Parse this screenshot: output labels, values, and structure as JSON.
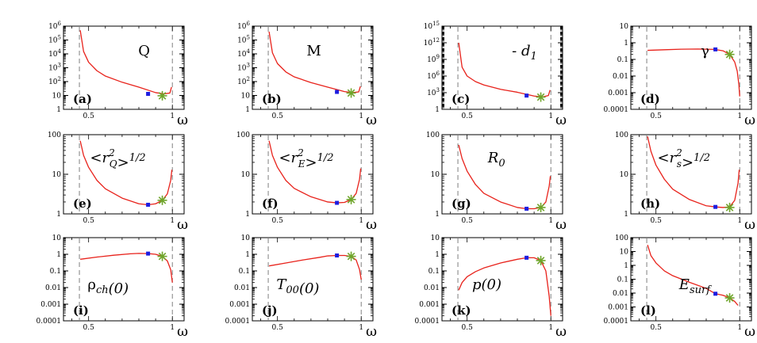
{
  "chart_data": [
    {
      "type": "line",
      "panel": "(a)",
      "quantity": "Q",
      "title_parts": [
        {
          "t": "Q"
        }
      ],
      "xlabel": "ω",
      "xlim": [
        0.35,
        1.07
      ],
      "ylog": true,
      "ylim": [
        1,
        1000000
      ],
      "yticks": [
        {
          "v": 1,
          "b": "1",
          "e": ""
        },
        {
          "v": 10,
          "b": "10",
          "e": ""
        },
        {
          "v": 100,
          "b": "10",
          "e": "2"
        },
        {
          "v": 1000,
          "b": "10",
          "e": "3"
        },
        {
          "v": 10000,
          "b": "10",
          "e": "4"
        },
        {
          "v": 100000,
          "b": "10",
          "e": "5"
        },
        {
          "v": 1000000,
          "b": "10",
          "e": "6"
        }
      ],
      "xticks": [
        {
          "v": 0.5,
          "l": "0.5"
        },
        {
          "v": 1,
          "l": "1"
        }
      ],
      "omega_min": 0.445,
      "omega_max": 1.0,
      "curve_x": [
        0.45,
        0.47,
        0.5,
        0.55,
        0.6,
        0.7,
        0.8,
        0.9,
        0.95,
        0.985,
        0.995
      ],
      "curve_y": [
        500000,
        15000,
        2500,
        600,
        250,
        90,
        40,
        16,
        13,
        15,
        40
      ],
      "blue_marker": [
        0.855,
        13
      ],
      "green_star": [
        0.94,
        9.5
      ]
    },
    {
      "type": "line",
      "panel": "(b)",
      "quantity": "M",
      "title_parts": [
        {
          "t": "M"
        }
      ],
      "xlabel": "ω",
      "xlim": [
        0.35,
        1.07
      ],
      "ylog": true,
      "ylim": [
        1,
        1000000
      ],
      "yticks": [
        {
          "v": 1,
          "b": "1",
          "e": ""
        },
        {
          "v": 10,
          "b": "10",
          "e": ""
        },
        {
          "v": 100,
          "b": "10",
          "e": "2"
        },
        {
          "v": 1000,
          "b": "10",
          "e": "3"
        },
        {
          "v": 10000,
          "b": "10",
          "e": "4"
        },
        {
          "v": 100000,
          "b": "10",
          "e": "5"
        },
        {
          "v": 1000000,
          "b": "10",
          "e": "6"
        }
      ],
      "xticks": [
        {
          "v": 0.5,
          "l": "0.5"
        },
        {
          "v": 1,
          "l": "1"
        }
      ],
      "omega_min": 0.445,
      "omega_max": 1.0,
      "curve_x": [
        0.45,
        0.47,
        0.5,
        0.55,
        0.6,
        0.7,
        0.8,
        0.9,
        0.95,
        0.985,
        0.995
      ],
      "curve_y": [
        400000,
        12000,
        2000,
        500,
        220,
        85,
        40,
        19,
        16,
        18,
        45
      ],
      "blue_marker": [
        0.855,
        18
      ],
      "green_star": [
        0.94,
        15
      ]
    },
    {
      "type": "line",
      "panel": "(c)",
      "quantity": "-d1",
      "title_parts": [
        {
          "t": "- "
        },
        {
          "t": "d",
          "i": true
        },
        {
          "t": "1",
          "sub": true,
          "i": true
        }
      ],
      "xlabel": "ω",
      "xlim": [
        0.35,
        1.07
      ],
      "ylog": true,
      "ylim": [
        1,
        1000000000000000
      ],
      "yticks": [
        {
          "v": 1,
          "b": "1",
          "e": ""
        },
        {
          "v": 1000,
          "b": "10",
          "e": "3"
        },
        {
          "v": 1000000,
          "b": "10",
          "e": "6"
        },
        {
          "v": 1000000000,
          "b": "10",
          "e": "9"
        },
        {
          "v": 1000000000000,
          "b": "10",
          "e": "12"
        },
        {
          "v": 1000000000000000,
          "b": "10",
          "e": "15"
        }
      ],
      "xticks": [
        {
          "v": 0.5,
          "l": "0.5"
        },
        {
          "v": 1,
          "l": "1"
        }
      ],
      "omega_min": 0.445,
      "omega_max": 1.0,
      "curve_x": [
        0.45,
        0.47,
        0.5,
        0.55,
        0.6,
        0.7,
        0.8,
        0.9,
        0.95,
        0.985,
        0.995
      ],
      "curve_y": [
        1000000000000,
        40000000,
        1000000,
        100000,
        25000,
        4000,
        1200,
        250,
        170,
        300,
        3000
      ],
      "blue_marker": [
        0.855,
        300
      ],
      "green_star": [
        0.94,
        160
      ]
    },
    {
      "type": "line",
      "panel": "(d)",
      "quantity": "γ",
      "title_parts": [
        {
          "t": "γ",
          "up": true
        }
      ],
      "xlabel": "ω",
      "xlim": [
        0.35,
        1.07
      ],
      "ylog": true,
      "ylim": [
        0.0001,
        10
      ],
      "yticks": [
        {
          "v": 0.0001,
          "b": "0.0001",
          "e": ""
        },
        {
          "v": 0.001,
          "b": "0.001",
          "e": ""
        },
        {
          "v": 0.01,
          "b": "0.01",
          "e": ""
        },
        {
          "v": 0.1,
          "b": "0.1",
          "e": ""
        },
        {
          "v": 1,
          "b": "1",
          "e": ""
        },
        {
          "v": 10,
          "b": "10",
          "e": ""
        }
      ],
      "xticks": [
        {
          "v": 0.5,
          "l": "0.5"
        },
        {
          "v": 1,
          "l": "1"
        }
      ],
      "omega_min": 0.445,
      "omega_max": 1.0,
      "curve_x": [
        0.45,
        0.55,
        0.65,
        0.75,
        0.85,
        0.9,
        0.94,
        0.97,
        0.985,
        0.995,
        1.0
      ],
      "curve_y": [
        0.35,
        0.38,
        0.41,
        0.42,
        0.4,
        0.33,
        0.2,
        0.07,
        0.02,
        0.003,
        0.0006
      ],
      "blue_marker": [
        0.855,
        0.4
      ],
      "green_star": [
        0.94,
        0.2
      ]
    },
    {
      "type": "line",
      "panel": "(e)",
      "quantity": "<r_Q^2>^{1/2}",
      "title_parts": [
        {
          "t": "<"
        },
        {
          "t": "r",
          "i": true
        },
        {
          "ss": true,
          "sup": "2",
          "sub": "Q"
        },
        {
          "t": ">"
        },
        {
          "t": "1/2",
          "sup": true,
          "i": true
        }
      ],
      "xlabel": "ω",
      "xlim": [
        0.35,
        1.07
      ],
      "ylog": true,
      "ylim": [
        1,
        100
      ],
      "yticks": [
        {
          "v": 1,
          "b": "1",
          "e": ""
        },
        {
          "v": 10,
          "b": "10",
          "e": ""
        },
        {
          "v": 100,
          "b": "100",
          "e": ""
        }
      ],
      "xticks": [
        {
          "v": 0.5,
          "l": "0.5"
        },
        {
          "v": 1,
          "l": "1"
        }
      ],
      "omega_min": 0.445,
      "omega_max": 1.0,
      "curve_x": [
        0.45,
        0.47,
        0.5,
        0.55,
        0.6,
        0.7,
        0.8,
        0.855,
        0.9,
        0.94,
        0.97,
        0.99,
        0.997
      ],
      "curve_y": [
        70,
        30,
        15,
        7,
        4.3,
        2.5,
        1.8,
        1.7,
        1.8,
        2.2,
        3.2,
        7,
        13
      ],
      "blue_marker": [
        0.855,
        1.7
      ],
      "green_star": [
        0.94,
        2.2
      ]
    },
    {
      "type": "line",
      "panel": "(f)",
      "quantity": "<r_E^2>^{1/2}",
      "title_parts": [
        {
          "t": "<"
        },
        {
          "t": "r",
          "i": true
        },
        {
          "ss": true,
          "sup": "2",
          "sub": "E"
        },
        {
          "t": ">"
        },
        {
          "t": "1/2",
          "sup": true,
          "i": true
        }
      ],
      "xlabel": "ω",
      "xlim": [
        0.35,
        1.07
      ],
      "ylog": true,
      "ylim": [
        1,
        100
      ],
      "yticks": [
        {
          "v": 1,
          "b": "1",
          "e": ""
        },
        {
          "v": 10,
          "b": "10",
          "e": ""
        },
        {
          "v": 100,
          "b": "100",
          "e": ""
        }
      ],
      "xticks": [
        {
          "v": 0.5,
          "l": "0.5"
        },
        {
          "v": 1,
          "l": "1"
        }
      ],
      "omega_min": 0.445,
      "omega_max": 1.0,
      "curve_x": [
        0.45,
        0.47,
        0.5,
        0.55,
        0.6,
        0.7,
        0.8,
        0.855,
        0.9,
        0.94,
        0.97,
        0.99,
        0.997
      ],
      "curve_y": [
        70,
        30,
        15,
        7,
        4.4,
        2.7,
        2.0,
        1.9,
        1.95,
        2.3,
        3.3,
        7.5,
        14
      ],
      "blue_marker": [
        0.855,
        1.9
      ],
      "green_star": [
        0.94,
        2.3
      ]
    },
    {
      "type": "line",
      "panel": "(g)",
      "quantity": "R0",
      "title_parts": [
        {
          "t": "R",
          "i": true
        },
        {
          "t": "0",
          "sub": true,
          "i": true
        }
      ],
      "xlabel": "ω",
      "xlim": [
        0.35,
        1.07
      ],
      "ylog": true,
      "ylim": [
        1,
        100
      ],
      "yticks": [
        {
          "v": 1,
          "b": "1",
          "e": ""
        },
        {
          "v": 10,
          "b": "10",
          "e": ""
        },
        {
          "v": 100,
          "b": "100",
          "e": ""
        }
      ],
      "xticks": [
        {
          "v": 0.5,
          "l": "0.5"
        },
        {
          "v": 1,
          "l": "1"
        }
      ],
      "omega_min": 0.445,
      "omega_max": 1.0,
      "curve_x": [
        0.45,
        0.47,
        0.5,
        0.55,
        0.6,
        0.7,
        0.8,
        0.855,
        0.9,
        0.94,
        0.97,
        0.99,
        0.997
      ],
      "curve_y": [
        55,
        25,
        12,
        5.5,
        3.3,
        2.0,
        1.45,
        1.35,
        1.35,
        1.45,
        2.0,
        5,
        9
      ],
      "blue_marker": [
        0.855,
        1.35
      ],
      "green_star": [
        0.94,
        1.45
      ]
    },
    {
      "type": "line",
      "panel": "(h)",
      "quantity": "<r_s^2>^{1/2}",
      "title_parts": [
        {
          "t": "<"
        },
        {
          "t": "r",
          "i": true
        },
        {
          "ss": true,
          "sup": "2",
          "sub": "s"
        },
        {
          "t": ">"
        },
        {
          "t": "1/2",
          "sup": true,
          "i": true
        }
      ],
      "xlabel": "ω",
      "xlim": [
        0.35,
        1.07
      ],
      "ylog": true,
      "ylim": [
        1,
        100
      ],
      "yticks": [
        {
          "v": 1,
          "b": "1",
          "e": ""
        },
        {
          "v": 10,
          "b": "10",
          "e": ""
        },
        {
          "v": 100,
          "b": "100",
          "e": ""
        }
      ],
      "xticks": [
        {
          "v": 0.5,
          "l": "0.5"
        },
        {
          "v": 1,
          "l": "1"
        }
      ],
      "omega_min": 0.445,
      "omega_max": 1.0,
      "curve_x": [
        0.45,
        0.47,
        0.5,
        0.55,
        0.6,
        0.7,
        0.8,
        0.855,
        0.9,
        0.94,
        0.97,
        0.99,
        0.997
      ],
      "curve_y": [
        90,
        38,
        17,
        7.5,
        4.2,
        2.3,
        1.6,
        1.5,
        1.45,
        1.5,
        2.2,
        6,
        13
      ],
      "blue_marker": [
        0.855,
        1.5
      ],
      "green_star": [
        0.94,
        1.45
      ]
    },
    {
      "type": "line",
      "panel": "(i)",
      "quantity": "ρch(0)",
      "title_parts": [
        {
          "t": "ρ",
          "up": true
        },
        {
          "t": "ch",
          "sub": true,
          "i": true
        },
        {
          "t": "(0)",
          "i": true
        }
      ],
      "xlabel": "ω",
      "xlim": [
        0.35,
        1.07
      ],
      "ylog": true,
      "ylim": [
        0.0001,
        10
      ],
      "yticks": [
        {
          "v": 0.0001,
          "b": "0.0001",
          "e": ""
        },
        {
          "v": 0.001,
          "b": "0.001",
          "e": ""
        },
        {
          "v": 0.01,
          "b": "0.01",
          "e": ""
        },
        {
          "v": 0.1,
          "b": "0.1",
          "e": ""
        },
        {
          "v": 1,
          "b": "1",
          "e": ""
        },
        {
          "v": 10,
          "b": "10",
          "e": ""
        }
      ],
      "xticks": [
        {
          "v": 0.5,
          "l": "0.5"
        },
        {
          "v": 1,
          "l": "1"
        }
      ],
      "omega_min": 0.445,
      "omega_max": 1.0,
      "curve_x": [
        0.45,
        0.55,
        0.65,
        0.75,
        0.8,
        0.855,
        0.9,
        0.94,
        0.97,
        0.99,
        1.0
      ],
      "curve_y": [
        0.5,
        0.68,
        0.88,
        1.07,
        1.13,
        1.1,
        1.0,
        0.75,
        0.4,
        0.12,
        0.02
      ],
      "blue_marker": [
        0.855,
        1.1
      ],
      "green_star": [
        0.94,
        0.75
      ]
    },
    {
      "type": "line",
      "panel": "(j)",
      "quantity": "T00(0)",
      "title_parts": [
        {
          "t": "T",
          "i": true
        },
        {
          "t": "00",
          "sub": true,
          "i": true
        },
        {
          "t": "(0)",
          "i": true
        }
      ],
      "xlabel": "ω",
      "xlim": [
        0.35,
        1.07
      ],
      "ylog": true,
      "ylim": [
        0.0001,
        10
      ],
      "yticks": [
        {
          "v": 0.0001,
          "b": "0.0001",
          "e": ""
        },
        {
          "v": 0.001,
          "b": "0.001",
          "e": ""
        },
        {
          "v": 0.01,
          "b": "0.01",
          "e": ""
        },
        {
          "v": 0.1,
          "b": "0.1",
          "e": ""
        },
        {
          "v": 1,
          "b": "1",
          "e": ""
        },
        {
          "v": 10,
          "b": "10",
          "e": ""
        }
      ],
      "xticks": [
        {
          "v": 0.5,
          "l": "0.5"
        },
        {
          "v": 1,
          "l": "1"
        }
      ],
      "omega_min": 0.445,
      "omega_max": 1.0,
      "curve_x": [
        0.45,
        0.55,
        0.65,
        0.75,
        0.8,
        0.855,
        0.9,
        0.94,
        0.97,
        0.99,
        1.0
      ],
      "curve_y": [
        0.2,
        0.3,
        0.45,
        0.65,
        0.8,
        0.85,
        0.85,
        0.75,
        0.45,
        0.12,
        0.03
      ],
      "blue_marker": [
        0.855,
        0.85
      ],
      "green_star": [
        0.94,
        0.75
      ]
    },
    {
      "type": "line",
      "panel": "(k)",
      "quantity": "p(0)",
      "title_parts": [
        {
          "t": "p(0)",
          "i": true
        }
      ],
      "xlabel": "ω",
      "xlim": [
        0.35,
        1.07
      ],
      "ylog": true,
      "ylim": [
        0.0001,
        10
      ],
      "yticks": [
        {
          "v": 0.0001,
          "b": "0.0001",
          "e": ""
        },
        {
          "v": 0.001,
          "b": "0.001",
          "e": ""
        },
        {
          "v": 0.01,
          "b": "0.01",
          "e": ""
        },
        {
          "v": 0.1,
          "b": "0.1",
          "e": ""
        },
        {
          "v": 1,
          "b": "1",
          "e": ""
        },
        {
          "v": 10,
          "b": "10",
          "e": ""
        }
      ],
      "xticks": [
        {
          "v": 0.5,
          "l": "0.5"
        },
        {
          "v": 1,
          "l": "1"
        }
      ],
      "omega_min": 0.445,
      "omega_max": 1.0,
      "curve_x": [
        0.45,
        0.47,
        0.5,
        0.55,
        0.6,
        0.7,
        0.8,
        0.855,
        0.9,
        0.94,
        0.97,
        0.99,
        1.0
      ],
      "curve_y": [
        0.007,
        0.02,
        0.045,
        0.09,
        0.15,
        0.3,
        0.5,
        0.62,
        0.62,
        0.42,
        0.1,
        0.003,
        0.0002
      ],
      "blue_marker": [
        0.855,
        0.62
      ],
      "green_star": [
        0.94,
        0.42
      ]
    },
    {
      "type": "line",
      "panel": "(l)",
      "quantity": "Esurf",
      "title_parts": [
        {
          "t": "E",
          "i": true
        },
        {
          "t": "surf",
          "sub": true,
          "i": true
        }
      ],
      "xlabel": "ω",
      "xlim": [
        0.35,
        1.07
      ],
      "ylog": true,
      "ylim": [
        0.0001,
        100
      ],
      "yticks": [
        {
          "v": 0.0001,
          "b": "0.0001",
          "e": ""
        },
        {
          "v": 0.001,
          "b": "0.001",
          "e": ""
        },
        {
          "v": 0.01,
          "b": "0.01",
          "e": ""
        },
        {
          "v": 0.1,
          "b": "0.1",
          "e": ""
        },
        {
          "v": 1,
          "b": "1",
          "e": ""
        },
        {
          "v": 10,
          "b": "10",
          "e": ""
        },
        {
          "v": 100,
          "b": "100",
          "e": ""
        }
      ],
      "xticks": [
        {
          "v": 0.5,
          "l": "0.5"
        },
        {
          "v": 1,
          "l": "1"
        }
      ],
      "omega_min": 0.445,
      "omega_max": 1.0,
      "curve_x": [
        0.45,
        0.47,
        0.5,
        0.55,
        0.6,
        0.7,
        0.8,
        0.855,
        0.9,
        0.94,
        0.97,
        0.99
      ],
      "curve_y": [
        30,
        5,
        1.5,
        0.4,
        0.18,
        0.06,
        0.022,
        0.009,
        0.007,
        0.0045,
        0.0025,
        0.0013
      ],
      "blue_marker": [
        0.855,
        0.009
      ],
      "green_star": [
        0.94,
        0.0045
      ]
    }
  ],
  "colors": {
    "curve": "#e8221b",
    "marker": "#1d1de0",
    "star": "#6fa52b",
    "axis": "#000000",
    "dashed": "#808080"
  }
}
